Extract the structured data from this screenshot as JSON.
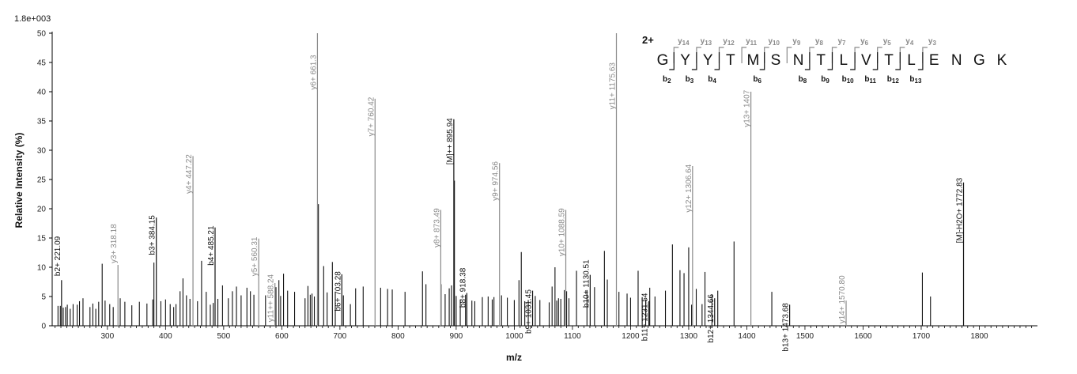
{
  "chart_data": {
    "type": "bar",
    "title": "",
    "xlabel": "m/z",
    "ylabel": "Relative   Intensity (%)",
    "scale_label": "1.8e+003",
    "xlim": [
      205,
      1900
    ],
    "ylim": [
      0,
      50
    ],
    "x_ticks": [
      300,
      400,
      500,
      600,
      700,
      800,
      900,
      1000,
      1100,
      1200,
      1300,
      1400,
      1500,
      1600,
      1700,
      1800
    ],
    "y_ticks": [
      0,
      5,
      10,
      15,
      20,
      25,
      30,
      35,
      40,
      45,
      50
    ],
    "colors": {
      "b_ion": "#111111",
      "y_ion": "#8a8a8a",
      "peak": "#111111",
      "precursor": "#333333"
    },
    "peaks": [
      [
        215,
        3.4
      ],
      [
        219,
        3.4
      ],
      [
        224,
        3.1
      ],
      [
        228,
        3.2
      ],
      [
        231,
        3.6
      ],
      [
        236,
        2.9
      ],
      [
        241,
        3.7
      ],
      [
        248,
        3.6
      ],
      [
        252,
        4.2
      ],
      [
        258,
        4.7
      ],
      [
        270,
        3.2
      ],
      [
        275,
        3.8
      ],
      [
        280,
        2.9
      ],
      [
        285,
        4.1
      ],
      [
        291,
        10.6
      ],
      [
        296,
        4.3
      ],
      [
        304,
        3.7
      ],
      [
        310,
        3.2
      ],
      [
        322,
        4.7
      ],
      [
        330,
        4.1
      ],
      [
        342,
        3.5
      ],
      [
        355,
        4.1
      ],
      [
        368,
        3.8
      ],
      [
        378,
        4.5
      ],
      [
        380,
        10.8
      ],
      [
        392,
        4.2
      ],
      [
        400,
        4.5
      ],
      [
        408,
        3.7
      ],
      [
        414,
        3.2
      ],
      [
        418,
        3.7
      ],
      [
        425,
        5.9
      ],
      [
        430,
        8.1
      ],
      [
        436,
        5.2
      ],
      [
        442,
        4.6
      ],
      [
        455,
        4.2
      ],
      [
        462,
        11.1
      ],
      [
        470,
        5.8
      ],
      [
        477,
        3.6
      ],
      [
        482,
        3.9
      ],
      [
        490,
        4.6
      ],
      [
        498,
        6.9
      ],
      [
        508,
        4.7
      ],
      [
        515,
        5.9
      ],
      [
        522,
        6.7
      ],
      [
        530,
        5.2
      ],
      [
        540,
        6.5
      ],
      [
        546,
        5.9
      ],
      [
        552,
        5.3
      ],
      [
        572,
        5.2
      ],
      [
        590,
        6.6
      ],
      [
        595,
        7.8
      ],
      [
        598,
        5.1
      ],
      [
        603,
        8.9
      ],
      [
        610,
        6.0
      ],
      [
        622,
        5.8
      ],
      [
        640,
        4.7
      ],
      [
        645,
        6.8
      ],
      [
        649,
        5.3
      ],
      [
        652,
        5.5
      ],
      [
        656,
        5.0
      ],
      [
        663,
        20.8
      ],
      [
        672,
        10.2
      ],
      [
        678,
        5.7
      ],
      [
        687,
        10.9
      ],
      [
        692,
        5.8
      ],
      [
        706,
        5.2
      ],
      [
        718,
        3.7
      ],
      [
        727,
        6.4
      ],
      [
        740,
        6.7
      ],
      [
        770,
        6.5
      ],
      [
        782,
        6.3
      ],
      [
        790,
        6.2
      ],
      [
        812,
        5.8
      ],
      [
        842,
        9.3
      ],
      [
        848,
        7.1
      ],
      [
        874,
        7.1
      ],
      [
        881,
        5.4
      ],
      [
        888,
        6.4
      ],
      [
        892,
        6.9
      ],
      [
        897,
        24.8
      ],
      [
        900,
        5.1
      ],
      [
        907,
        4.5
      ],
      [
        916,
        5.3
      ],
      [
        927,
        4.3
      ],
      [
        932,
        4.2
      ],
      [
        945,
        4.9
      ],
      [
        955,
        5.0
      ],
      [
        962,
        4.5
      ],
      [
        965,
        4.9
      ],
      [
        978,
        5.2
      ],
      [
        988,
        4.8
      ],
      [
        1000,
        4.4
      ],
      [
        1008,
        7.8
      ],
      [
        1012,
        12.6
      ],
      [
        1018,
        4.2
      ],
      [
        1024,
        4.4
      ],
      [
        1036,
        5.1
      ],
      [
        1044,
        4.4
      ],
      [
        1060,
        4.0
      ],
      [
        1065,
        6.7
      ],
      [
        1070,
        10.0
      ],
      [
        1073,
        4.3
      ],
      [
        1076,
        4.7
      ],
      [
        1080,
        4.6
      ],
      [
        1086,
        6.1
      ],
      [
        1090,
        5.9
      ],
      [
        1094,
        4.7
      ],
      [
        1107,
        9.4
      ],
      [
        1125,
        6.1
      ],
      [
        1138,
        6.6
      ],
      [
        1155,
        12.8
      ],
      [
        1160,
        7.9
      ],
      [
        1180,
        5.8
      ],
      [
        1194,
        5.5
      ],
      [
        1200,
        4.8
      ],
      [
        1213,
        9.4
      ],
      [
        1220,
        4.9
      ],
      [
        1226,
        4.5
      ],
      [
        1233,
        6.5
      ],
      [
        1242,
        5.0
      ],
      [
        1260,
        6.0
      ],
      [
        1272,
        13.9
      ],
      [
        1285,
        9.5
      ],
      [
        1292,
        9.0
      ],
      [
        1300,
        13.4
      ],
      [
        1305,
        3.6
      ],
      [
        1313,
        6.3
      ],
      [
        1323,
        3.7
      ],
      [
        1328,
        9.2
      ],
      [
        1340,
        5.4
      ],
      [
        1350,
        6.0
      ],
      [
        1378,
        14.4
      ],
      [
        1443,
        5.8
      ],
      [
        1702,
        9.1
      ],
      [
        1716,
        5.0
      ]
    ],
    "annotations": [
      {
        "label": "b2+ 221.09",
        "mz": 221.09,
        "h": 7.8,
        "ion": "b",
        "lh": 15.3
      },
      {
        "label": "y3+ 318.18",
        "mz": 318.18,
        "h": 10.4,
        "ion": "y",
        "lh": 17.4
      },
      {
        "label": "b3+ 384.15",
        "mz": 384.15,
        "h": 18.5,
        "ion": "b",
        "lh": 18.9
      },
      {
        "label": "y4+ 447.22",
        "mz": 447.22,
        "h": 29.0,
        "ion": "y",
        "lh": 29.3
      },
      {
        "label": "b4+ 485.21",
        "mz": 485.21,
        "h": 16.8,
        "ion": "b",
        "lh": 17.1
      },
      {
        "label": "y5+ 560.31",
        "mz": 560.31,
        "h": 14.9,
        "ion": "y",
        "lh": 15.2
      },
      {
        "label": "y11++ 588.24",
        "mz": 588.24,
        "h": 7.3,
        "ion": "y",
        "lh": 8.8
      },
      {
        "label": "y6+ 661.3",
        "mz": 661.3,
        "h": 50.0,
        "ion": "y",
        "lh": 46.3
      },
      {
        "label": "b6+ 703.28",
        "mz": 703.28,
        "h": 8.8,
        "ion": "b",
        "lh": 9.3
      },
      {
        "label": "y7+ 760.42",
        "mz": 760.42,
        "h": 38.8,
        "ion": "y",
        "lh": 39.1
      },
      {
        "label": "y8+ 873.49",
        "mz": 873.49,
        "h": 19.8,
        "ion": "y",
        "lh": 20.1
      },
      {
        "label": "[M]++ 895.94",
        "mz": 895.94,
        "h": 35.3,
        "ion": "b",
        "lh": 35.5
      },
      {
        "label": "b8+ 918.38",
        "mz": 918.38,
        "h": 5.6,
        "ion": "b",
        "lh": 9.9
      },
      {
        "label": "y9+ 974.56",
        "mz": 974.56,
        "h": 27.8,
        "ion": "y",
        "lh": 28.1
      },
      {
        "label": "b9+ 1031.45",
        "mz": 1031.45,
        "h": 6.0,
        "ion": "b",
        "lh": 6.2
      },
      {
        "label": "y10+ 1088.59",
        "mz": 1088.59,
        "h": 19.8,
        "ion": "y",
        "lh": 20.1
      },
      {
        "label": "b10+ 1130.51",
        "mz": 1130.51,
        "h": 8.7,
        "ion": "b",
        "lh": 11.3
      },
      {
        "label": "y11+ 1175.63",
        "mz": 1175.63,
        "h": 50.0,
        "ion": "y",
        "lh": 45.0
      },
      {
        "label": "b11+ 1231.54",
        "mz": 1231.54,
        "h": 4.2,
        "ion": "b",
        "lh": 5.6
      },
      {
        "label": "y12+ 1306.64",
        "mz": 1306.64,
        "h": 27.3,
        "ion": "y",
        "lh": 27.6
      },
      {
        "label": "b12+ 1344.66",
        "mz": 1344.66,
        "h": 4.7,
        "ion": "b",
        "lh": 5.4
      },
      {
        "label": "y13+ 1407",
        "mz": 1407,
        "h": 40.0,
        "ion": "y",
        "lh": 40.3
      },
      {
        "label": "b13+ 1473.68",
        "mz": 1473.68,
        "h": 3.6,
        "ion": "b",
        "lh": 3.9
      },
      {
        "label": "y14+ 1570.80",
        "mz": 1570.8,
        "h": 4.3,
        "ion": "y",
        "lh": 8.6
      },
      {
        "label": "[M]-H2O+ 1772.83",
        "mz": 1772.83,
        "h": 24.5,
        "ion": "b",
        "lh": 25.3
      }
    ]
  },
  "sequence": {
    "charge": "2+",
    "residues": [
      "G",
      "Y",
      "Y",
      "T",
      "M",
      "S",
      "N",
      "T",
      "L",
      "V",
      "T",
      "L",
      "E",
      "N",
      "G",
      "K"
    ],
    "y_ions": [
      {
        "label": "y",
        "sub": "14",
        "after": 1
      },
      {
        "label": "y",
        "sub": "13",
        "after": 2
      },
      {
        "label": "y",
        "sub": "12",
        "after": 3
      },
      {
        "label": "y",
        "sub": "11",
        "after": 4
      },
      {
        "label": "y",
        "sub": "10",
        "after": 5
      },
      {
        "label": "y",
        "sub": "9",
        "after": 6
      },
      {
        "label": "y",
        "sub": "8",
        "after": 7
      },
      {
        "label": "y",
        "sub": "7",
        "after": 8
      },
      {
        "label": "y",
        "sub": "6",
        "after": 9
      },
      {
        "label": "y",
        "sub": "5",
        "after": 10
      },
      {
        "label": "y",
        "sub": "4",
        "after": 11
      },
      {
        "label": "y",
        "sub": "3",
        "after": 12
      }
    ],
    "b_ions": [
      {
        "label": "b",
        "sub": "2",
        "after": 1
      },
      {
        "label": "b",
        "sub": "3",
        "after": 2
      },
      {
        "label": "b",
        "sub": "4",
        "after": 3
      },
      {
        "label": "b",
        "sub": "6",
        "after": 5
      },
      {
        "label": "b",
        "sub": "8",
        "after": 7
      },
      {
        "label": "b",
        "sub": "9",
        "after": 8
      },
      {
        "label": "b",
        "sub": "10",
        "after": 9
      },
      {
        "label": "b",
        "sub": "11",
        "after": 10
      },
      {
        "label": "b",
        "sub": "12",
        "after": 11
      },
      {
        "label": "b",
        "sub": "13",
        "after": 12
      }
    ]
  }
}
